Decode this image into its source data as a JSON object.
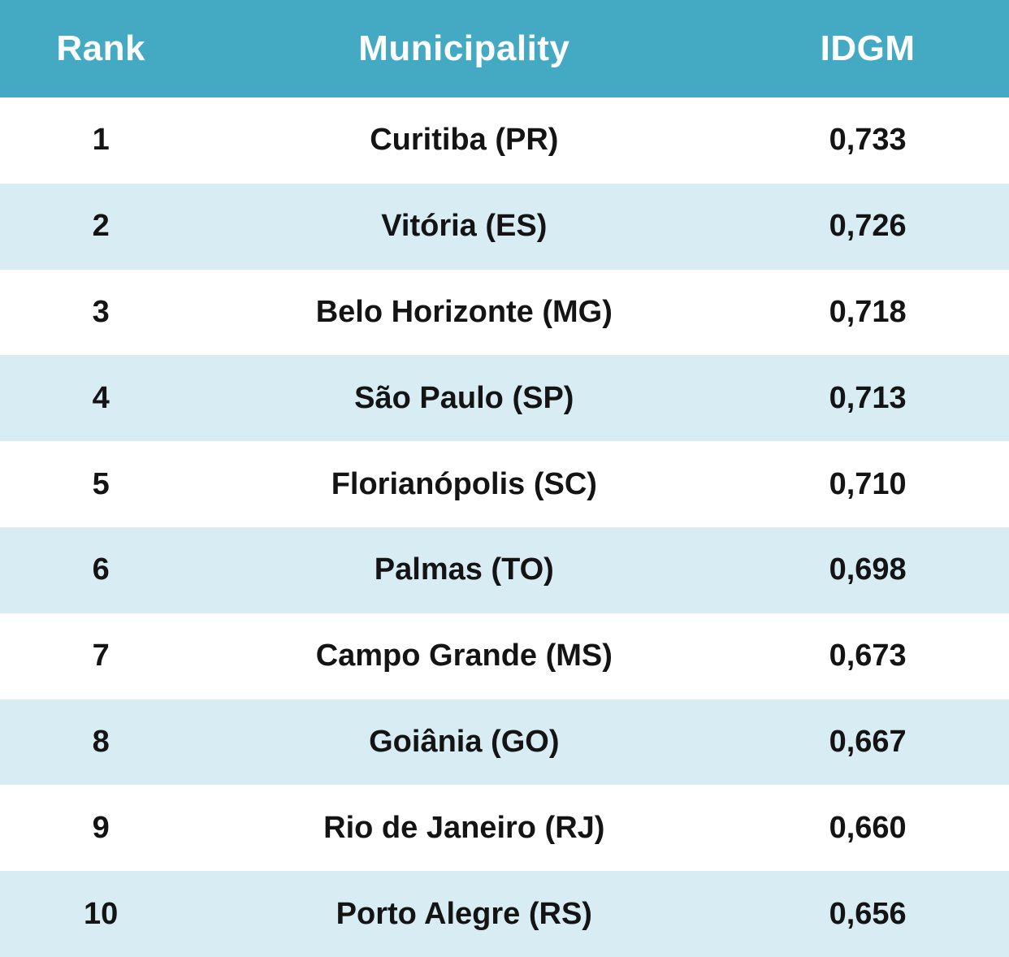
{
  "colors": {
    "header_background": "#44aac4",
    "header_text": "#ffffff",
    "row_alt_background": "#d8ecf3",
    "row_background": "#ffffff",
    "body_text": "#141414"
  },
  "table": {
    "columns": [
      "Rank",
      "Municipality",
      "IDGM"
    ],
    "rows": [
      {
        "rank": "1",
        "municipality": "Curitiba (PR)",
        "idgm": "0,733"
      },
      {
        "rank": "2",
        "municipality": "Vitória (ES)",
        "idgm": "0,726"
      },
      {
        "rank": "3",
        "municipality": "Belo Horizonte (MG)",
        "idgm": "0,718"
      },
      {
        "rank": "4",
        "municipality": "São Paulo (SP)",
        "idgm": "0,713"
      },
      {
        "rank": "5",
        "municipality": "Florianópolis (SC)",
        "idgm": "0,710"
      },
      {
        "rank": "6",
        "municipality": "Palmas (TO)",
        "idgm": "0,698"
      },
      {
        "rank": "7",
        "municipality": "Campo Grande (MS)",
        "idgm": "0,673"
      },
      {
        "rank": "8",
        "municipality": "Goiânia (GO)",
        "idgm": "0,667"
      },
      {
        "rank": "9",
        "municipality": "Rio de Janeiro (RJ)",
        "idgm": "0,660"
      },
      {
        "rank": "10",
        "municipality": "Porto Alegre (RS)",
        "idgm": "0,656"
      }
    ]
  },
  "chart_data": {
    "type": "table",
    "title": "",
    "categories": [
      "Curitiba (PR)",
      "Vitória (ES)",
      "Belo Horizonte (MG)",
      "São Paulo (SP)",
      "Florianópolis (SC)",
      "Palmas (TO)",
      "Campo Grande (MS)",
      "Goiânia (GO)",
      "Rio de Janeiro (RJ)",
      "Porto Alegre (RS)"
    ],
    "series": [
      {
        "name": "Rank",
        "values": [
          1,
          2,
          3,
          4,
          5,
          6,
          7,
          8,
          9,
          10
        ]
      },
      {
        "name": "IDGM",
        "values": [
          0.733,
          0.726,
          0.718,
          0.713,
          0.71,
          0.698,
          0.673,
          0.667,
          0.66,
          0.656
        ]
      }
    ]
  }
}
